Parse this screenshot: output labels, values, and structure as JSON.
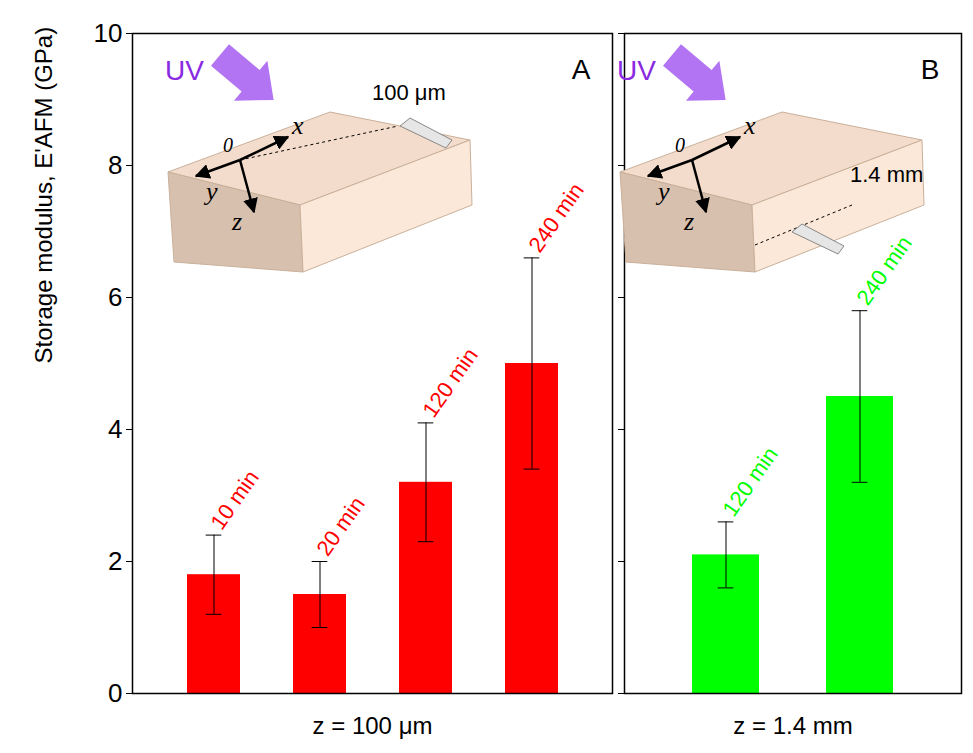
{
  "chart_data": [
    {
      "type": "bar",
      "title": "A",
      "categories": [
        "10 min",
        "20 min",
        "120 min",
        "240 min"
      ],
      "values": [
        1.8,
        1.5,
        3.2,
        5.0
      ],
      "errors": [
        0.6,
        0.5,
        0.9,
        1.6
      ],
      "color": "#ff0000",
      "ylabel": "Storage modulus, E'AFM (GPa)",
      "xlabel": "z = 100 μm",
      "ylim": [
        0,
        10
      ],
      "yticks": [
        0,
        2,
        4,
        6,
        8,
        10
      ],
      "tick_labels": "y",
      "annotations": [
        "UV",
        "x",
        "y",
        "z",
        "0",
        "100 μm"
      ]
    },
    {
      "type": "bar",
      "title": "B",
      "categories": [
        "120 min",
        "240 min"
      ],
      "values": [
        2.1,
        4.5
      ],
      "errors": [
        0.5,
        1.3
      ],
      "color": "#00ff00",
      "xlabel": "z = 1.4 mm",
      "ylim": [
        0,
        10
      ],
      "yticks": [
        0,
        2,
        4,
        6,
        8,
        10
      ],
      "tick_labels": false,
      "annotations": [
        "UV",
        "x",
        "y",
        "z",
        "0",
        "1.4 mm"
      ]
    }
  ]
}
